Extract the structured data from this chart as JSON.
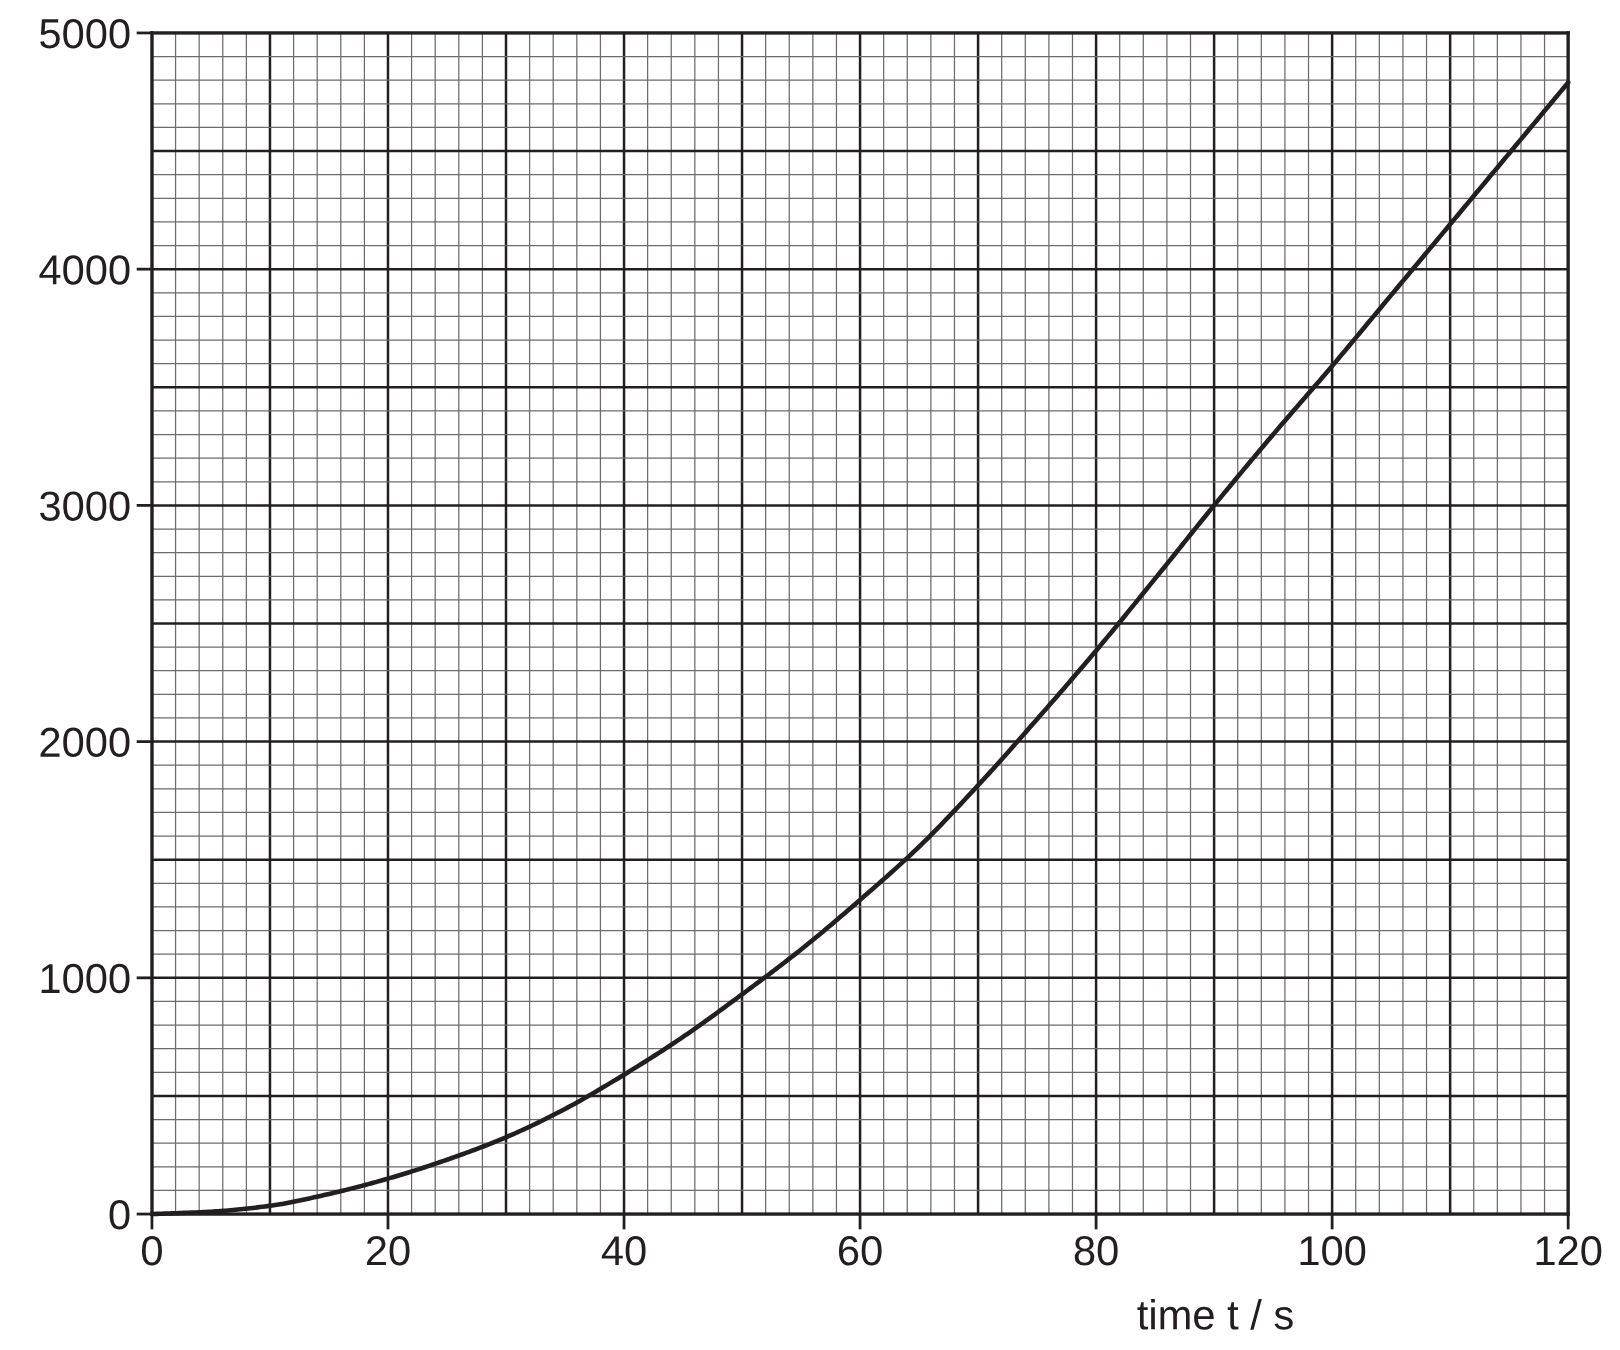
{
  "chart_data": {
    "type": "line",
    "xlabel": "time t / s",
    "x": [
      0,
      5,
      10,
      15,
      20,
      25,
      30,
      35,
      40,
      45,
      50,
      55,
      60,
      65,
      70,
      75,
      80,
      85,
      90,
      95,
      100,
      105,
      110,
      115,
      120
    ],
    "series": [
      {
        "color": "#231f20",
        "values": [
          0,
          10,
          35,
          85,
          150,
          230,
          325,
          445,
          590,
          750,
          930,
          1120,
          1330,
          1555,
          1815,
          2095,
          2385,
          2690,
          3000,
          3300,
          3590,
          3890,
          4190,
          4490,
          4790
        ]
      }
    ],
    "xlim": [
      0,
      120
    ],
    "ylim": [
      0,
      5000
    ],
    "xticks": [
      0,
      20,
      40,
      60,
      80,
      100,
      120
    ],
    "yticks": [
      0,
      1000,
      2000,
      3000,
      4000,
      5000
    ],
    "grid": true,
    "line_style": "solid"
  }
}
